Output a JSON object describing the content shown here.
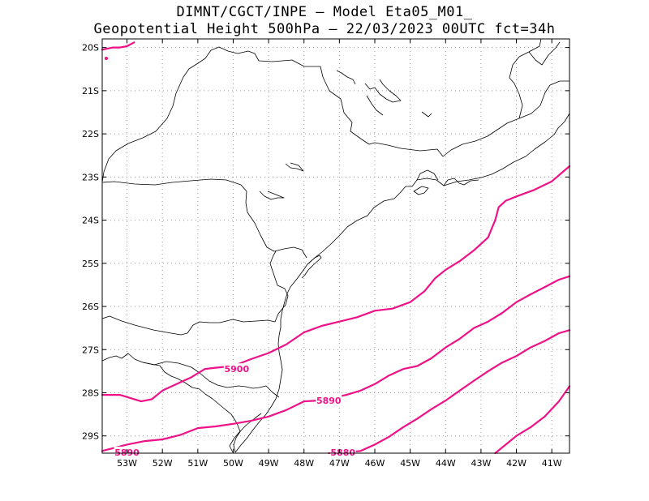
{
  "header": {
    "line1": "DIMNT/CGCT/INPE –  Model Eta05_M01_",
    "line2": "Geopotential Height 500hPa –  22/03/2023 00UTC fct=34h"
  },
  "colors": {
    "contour": "#ee1188",
    "coast": "#000000",
    "grid": "#999999",
    "frame": "#000000"
  },
  "map": {
    "lon_range": [
      -53.7,
      -40.5
    ],
    "lat_range": [
      -29.4,
      -19.8
    ],
    "grid": "dotted",
    "lat_ticks": [
      {
        "value": -20,
        "label": "20S"
      },
      {
        "value": -21,
        "label": "21S"
      },
      {
        "value": -22,
        "label": "22S"
      },
      {
        "value": -23,
        "label": "23S"
      },
      {
        "value": -24,
        "label": "24S"
      },
      {
        "value": -25,
        "label": "25S"
      },
      {
        "value": -26,
        "label": "26S"
      },
      {
        "value": -27,
        "label": "27S"
      },
      {
        "value": -28,
        "label": "28S"
      },
      {
        "value": -29,
        "label": "29S"
      }
    ],
    "lon_ticks": [
      {
        "value": -53,
        "label": "53W"
      },
      {
        "value": -52,
        "label": "52W"
      },
      {
        "value": -51,
        "label": "51W"
      },
      {
        "value": -50,
        "label": "50W"
      },
      {
        "value": -49,
        "label": "49W"
      },
      {
        "value": -48,
        "label": "48W"
      },
      {
        "value": -47,
        "label": "47W"
      },
      {
        "value": -46,
        "label": "46W"
      },
      {
        "value": -45,
        "label": "45W"
      },
      {
        "value": -44,
        "label": "44W"
      },
      {
        "value": -43,
        "label": "43W"
      },
      {
        "value": -42,
        "label": "42W"
      },
      {
        "value": -41,
        "label": "41W"
      }
    ],
    "contour_labels": [
      {
        "text": "5900",
        "lon": -49.9,
        "lat": -27.45
      },
      {
        "text": "5890",
        "lon": -47.3,
        "lat": -28.18
      },
      {
        "text": "5880",
        "lon": -46.9,
        "lat": -29.38
      },
      {
        "text": "5890",
        "lon": -53.0,
        "lat": -29.38
      }
    ]
  },
  "chart_data": {
    "type": "line",
    "title": "Geopotential Height 500hPa",
    "xlabel": "",
    "ylabel": "",
    "xlim": [
      -53.7,
      -40.5
    ],
    "ylim": [
      -29.4,
      -19.8
    ],
    "series": [
      {
        "name": "",
        "x": [
          -53.7,
          -53.4,
          -53.2,
          -53.0,
          -52.8
        ],
        "y": [
          -20.05,
          -20.0,
          -20.0,
          -19.97,
          -19.88
        ]
      },
      {
        "name": "",
        "x": [
          -53.7,
          -53.2,
          -52.6,
          -52.3,
          -52.0,
          -51.6,
          -51.2,
          -50.8,
          -50.5,
          -50.0,
          -49.5,
          -49.0,
          -48.5,
          -48.0,
          -47.5,
          -47.0,
          -46.5,
          -46.0,
          -45.5,
          -45.0,
          -44.6,
          -44.3,
          -44.0,
          -43.6,
          -43.2,
          -42.8,
          -42.6,
          -42.5,
          -42.3,
          -42.0,
          -41.5,
          -41.0,
          -40.5
        ],
        "y": [
          -28.05,
          -28.05,
          -28.2,
          -28.15,
          -27.95,
          -27.8,
          -27.65,
          -27.45,
          -27.42,
          -27.38,
          -27.22,
          -27.08,
          -26.88,
          -26.6,
          -26.45,
          -26.35,
          -26.25,
          -26.1,
          -26.05,
          -25.9,
          -25.65,
          -25.35,
          -25.15,
          -24.95,
          -24.7,
          -24.4,
          -24.0,
          -23.7,
          -23.55,
          -23.45,
          -23.3,
          -23.1,
          -22.75
        ]
      },
      {
        "name": "",
        "x": [
          -53.7,
          -53.0,
          -52.5,
          -52.0,
          -51.5,
          -51.0,
          -50.5,
          -50.0,
          -49.5,
          -49.0,
          -48.5,
          -48.0,
          -47.6,
          -47.2,
          -46.8,
          -46.4,
          -46.0,
          -45.6,
          -45.2,
          -44.8,
          -44.4,
          -44.0,
          -43.6,
          -43.2,
          -42.8,
          -42.4,
          -42.0,
          -41.6,
          -41.2,
          -40.8,
          -40.5
        ],
        "y": [
          -29.35,
          -29.2,
          -29.12,
          -29.08,
          -28.98,
          -28.82,
          -28.78,
          -28.72,
          -28.65,
          -28.55,
          -28.4,
          -28.2,
          -28.18,
          -28.12,
          -28.05,
          -27.95,
          -27.8,
          -27.6,
          -27.45,
          -27.38,
          -27.2,
          -26.95,
          -26.75,
          -26.5,
          -26.35,
          -26.15,
          -25.9,
          -25.72,
          -25.55,
          -25.38,
          -25.3
        ]
      },
      {
        "name": "",
        "x": [
          -47.3,
          -46.8,
          -46.4,
          -46.0,
          -45.6,
          -45.2,
          -44.8,
          -44.4,
          -44.0,
          -43.6,
          -43.2,
          -42.8,
          -42.4,
          -42.0,
          -41.6,
          -41.2,
          -40.8,
          -40.5
        ],
        "y": [
          -29.4,
          -29.38,
          -29.35,
          -29.2,
          -29.02,
          -28.8,
          -28.6,
          -28.38,
          -28.18,
          -27.95,
          -27.72,
          -27.5,
          -27.3,
          -27.15,
          -26.95,
          -26.8,
          -26.62,
          -26.55
        ]
      },
      {
        "name": "",
        "x": [
          -42.6,
          -42.3,
          -42.0,
          -41.6,
          -41.2,
          -40.8,
          -40.5
        ],
        "y": [
          -29.4,
          -29.2,
          -29.0,
          -28.8,
          -28.55,
          -28.2,
          -27.85
        ]
      }
    ]
  }
}
